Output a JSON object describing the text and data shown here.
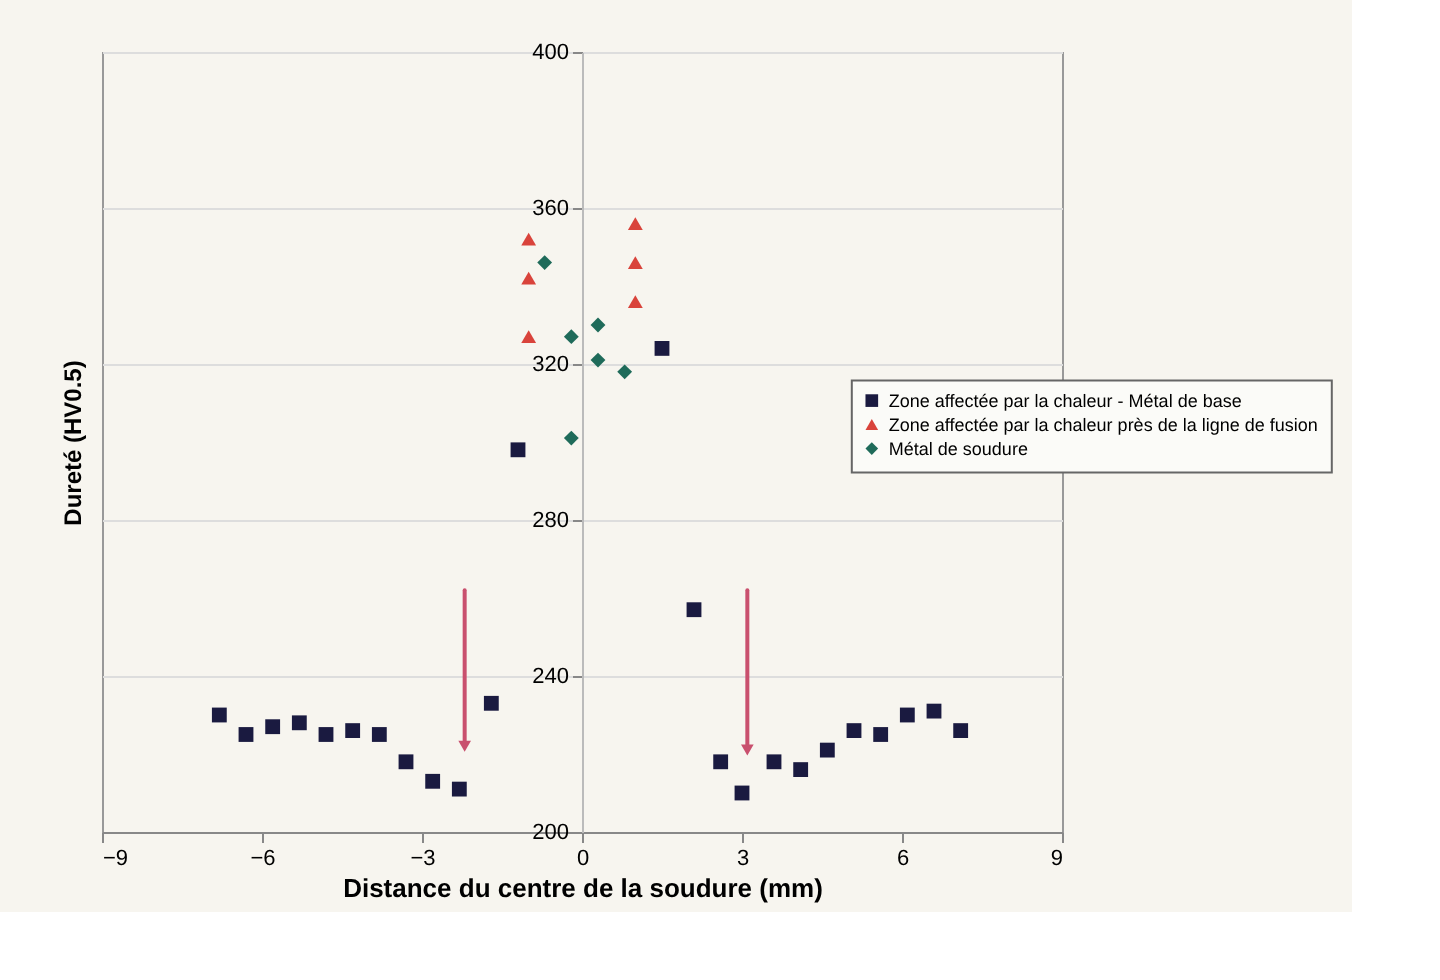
{
  "chart_data": {
    "type": "scatter",
    "xlabel": "Distance du centre de la soudure (mm)",
    "ylabel": "Dureté (HV0.5)",
    "xlim": [
      -9,
      9
    ],
    "xticks": [
      -9,
      -6,
      -3,
      0,
      3,
      6,
      9
    ],
    "ylim": [
      200,
      400
    ],
    "yticks": [
      200,
      240,
      280,
      320,
      360,
      400
    ],
    "grid": "y",
    "legend": "right",
    "series": [
      {
        "name": "Zone affectée par la chaleur - Métal de base",
        "color": "#1a1a40",
        "marker": "square",
        "x": [
          -6.8,
          -6.3,
          -5.8,
          -5.3,
          -4.8,
          -4.3,
          -3.8,
          -3.3,
          -2.8,
          -2.3,
          -1.7,
          -1.2,
          1.5,
          2.1,
          2.6,
          3.0,
          3.6,
          4.1,
          4.6,
          5.1,
          5.6,
          6.1,
          6.6,
          7.1
        ],
        "values": [
          230,
          225,
          227,
          228,
          225,
          226,
          225,
          218,
          213,
          211,
          233,
          298,
          324,
          257,
          218,
          210,
          218,
          216,
          221,
          226,
          225,
          230,
          231,
          226
        ]
      },
      {
        "name": "Zone affectée par la chaleur près de la ligne de fusion",
        "color": "#d9433b",
        "marker": "triangle",
        "x": [
          -1,
          -1,
          -1,
          1,
          1,
          1
        ],
        "values": [
          352,
          342,
          327,
          356,
          346,
          336
        ]
      },
      {
        "name": "Métal de soudure",
        "color": "#1f6b5a",
        "marker": "diamond",
        "x": [
          -0.7,
          -0.2,
          0.3,
          0.3,
          0.8,
          -0.2
        ],
        "values": [
          346,
          327,
          330,
          321,
          318,
          301
        ]
      }
    ]
  }
}
